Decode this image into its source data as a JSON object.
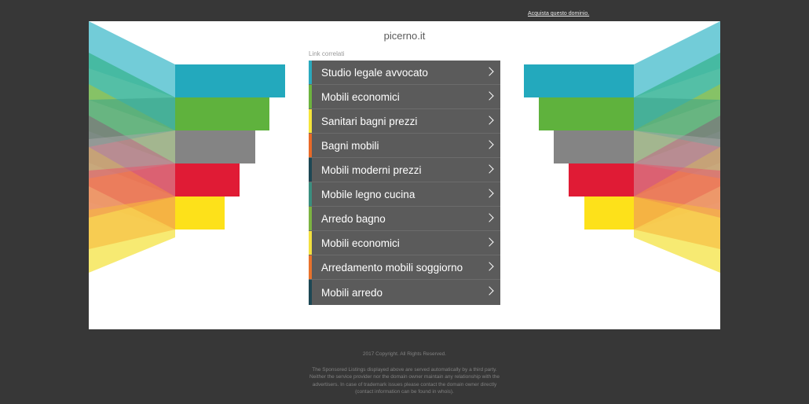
{
  "header": {
    "buy_domain_link": "Acquista questo dominio."
  },
  "site": {
    "name": "picerno.it"
  },
  "related": {
    "label": "Link correlati",
    "items": [
      {
        "label": "Studio legale avvocato",
        "accent": "#2aa9bd"
      },
      {
        "label": "Mobili economici",
        "accent": "#6db33f"
      },
      {
        "label": "Sanitari bagni prezzi",
        "accent": "#f5e43a"
      },
      {
        "label": "Bagni mobili",
        "accent": "#e96a27"
      },
      {
        "label": "Mobili moderni prezzi",
        "accent": "#1d4754"
      },
      {
        "label": "Mobile legno cucina",
        "accent": "#3a8f7f"
      },
      {
        "label": "Arredo bagno",
        "accent": "#7cb342"
      },
      {
        "label": "Mobili economici",
        "accent": "#f3e03f"
      },
      {
        "label": "Arredamento mobili soggiorno",
        "accent": "#e8722c"
      },
      {
        "label": "Mobili arredo",
        "accent": "#1d4754"
      }
    ]
  },
  "decoration": {
    "bar_colors": [
      "#23a9bd",
      "#5fb23d",
      "#848484",
      "#e01b35",
      "#fde11a"
    ]
  },
  "footer": {
    "copyright": "2017 Copyright. All Rights Reserved.",
    "disclaimer": "The Sponsored Listings displayed above are served automatically by a third party. Neither the service provider nor the domain owner maintain any relationship with the advertisers. In case of trademark issues please contact the domain owner directly (contact information can be found in whois)."
  }
}
